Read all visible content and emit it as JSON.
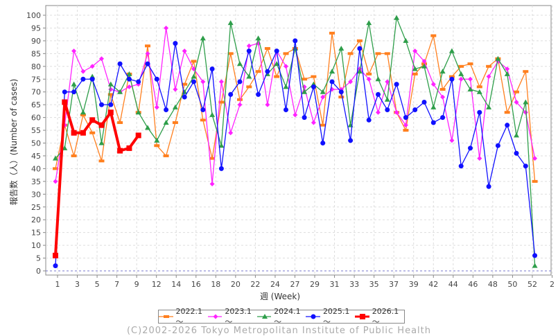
{
  "chart_data": {
    "type": "line",
    "title": "",
    "xlabel": "週 (Week)",
    "ylabel": "報告数（人）(Number of cases)",
    "ylim": [
      0,
      100
    ],
    "ytick_step": 5,
    "yticks": [
      "0",
      "5",
      "10",
      "15",
      "20",
      "25",
      "30",
      "35",
      "40",
      "45",
      "50",
      "55",
      "60",
      "65",
      "70",
      "75",
      "80",
      "85",
      "90",
      "95",
      "100"
    ],
    "xtick_labels": [
      "1",
      "3",
      "5",
      "7",
      "9",
      "12",
      "14",
      "16",
      "18",
      "20",
      "22",
      "24",
      "27",
      "29",
      "31",
      "33",
      "35",
      "37",
      "39",
      "42",
      "44",
      "46",
      "48",
      "50",
      "52",
      "2"
    ],
    "grid": true,
    "legend_position": "bottom",
    "series": [
      {
        "name": "2022.1～",
        "color": "#ff7f1e",
        "marker": "bar",
        "values": [
          40,
          57,
          45,
          61,
          54,
          43,
          69,
          58,
          77,
          62,
          88,
          49,
          45,
          58,
          73,
          82,
          59,
          44,
          66,
          85,
          67,
          72,
          78,
          87,
          76,
          85,
          87,
          75,
          76,
          57,
          93,
          68,
          85,
          90,
          77,
          85,
          85,
          62,
          55,
          77,
          81,
          92,
          71,
          76,
          80,
          81,
          72,
          80,
          83,
          62,
          70,
          78,
          35
        ]
      },
      {
        "name": "2023.1～",
        "color": "#ff22ff",
        "marker": "diamond",
        "values": [
          35,
          57,
          86,
          78,
          80,
          83,
          71,
          70,
          72,
          73,
          85,
          64,
          95,
          71,
          86,
          79,
          74,
          34,
          74,
          54,
          65,
          88,
          89,
          65,
          86,
          80,
          61,
          72,
          58,
          68,
          71,
          71,
          74,
          79,
          75,
          62,
          74,
          62,
          57,
          86,
          82,
          73,
          68,
          51,
          75,
          75,
          44,
          76,
          82,
          79,
          66,
          62,
          44
        ]
      },
      {
        "name": "2024.1～",
        "color": "#2e9e4a",
        "marker": "triangle",
        "values": [
          44,
          48,
          73,
          62,
          76,
          50,
          73,
          70,
          77,
          62,
          56,
          51,
          58,
          64,
          70,
          76,
          91,
          61,
          49,
          97,
          81,
          76,
          91,
          77,
          81,
          72,
          87,
          70,
          73,
          70,
          78,
          87,
          57,
          78,
          97,
          75,
          67,
          99,
          90,
          79,
          80,
          64,
          78,
          86,
          77,
          71,
          70,
          64,
          83,
          77,
          53,
          66,
          2
        ]
      },
      {
        "name": "2025.1～",
        "color": "#1010ff",
        "marker": "circle",
        "values": [
          2,
          70,
          70,
          75,
          75,
          65,
          65,
          81,
          75,
          74,
          81,
          75,
          63,
          89,
          68,
          74,
          63,
          79,
          40,
          69,
          74,
          86,
          69,
          78,
          86,
          63,
          90,
          60,
          72,
          50,
          74,
          70,
          51,
          87,
          59,
          69,
          63,
          73,
          60,
          63,
          66,
          58,
          60,
          75,
          41,
          48,
          62,
          33,
          49,
          57,
          46,
          41,
          6
        ]
      },
      {
        "name": "2026.1～",
        "color": "#ff0000",
        "marker": "square",
        "values": [
          6,
          66,
          54,
          54,
          59,
          57,
          62,
          47,
          48,
          53
        ]
      }
    ]
  },
  "copyright": "(C)2002-2026 Tokyo Metropolitan Institute of Public Health"
}
